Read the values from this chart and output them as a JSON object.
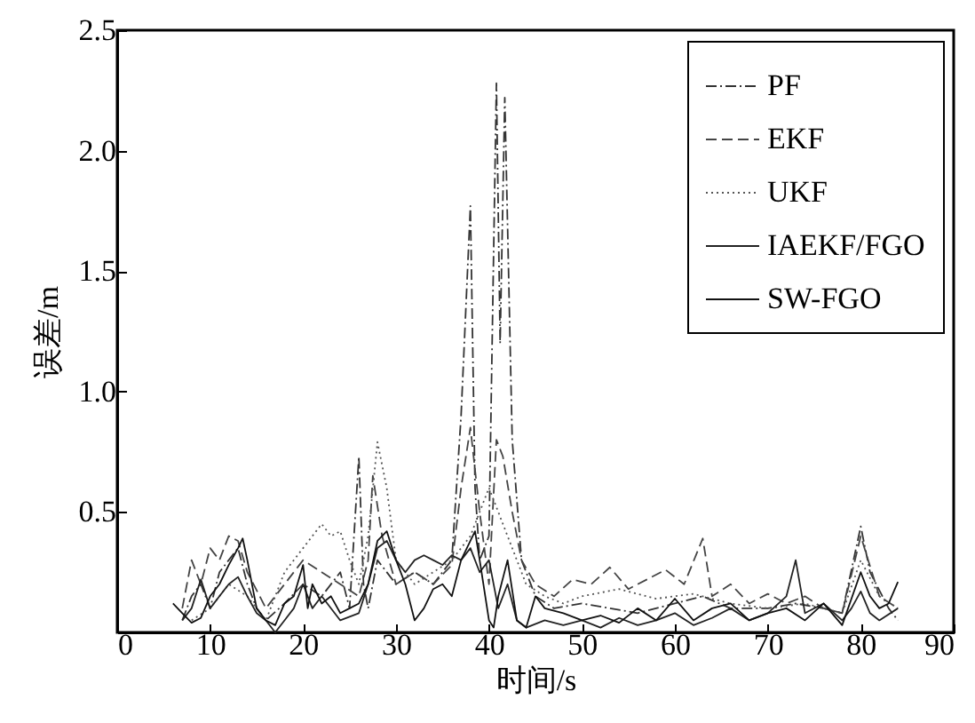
{
  "chart_data": {
    "type": "line",
    "xlabel": "时间/s",
    "ylabel": "误差/m",
    "xlim": [
      0,
      90
    ],
    "ylim": [
      0,
      2.5
    ],
    "xticks": [
      0,
      10,
      20,
      30,
      40,
      50,
      60,
      70,
      80,
      90
    ],
    "yticks": [
      {
        "value": 0,
        "label": null
      },
      0.5,
      {
        "value": 1,
        "label": "1.0"
      },
      1.5,
      {
        "value": 2,
        "label": "2.0"
      },
      2.5
    ],
    "legend": "top right",
    "series": [
      {
        "name": "PF",
        "color": "#333333",
        "line_style": "dashdot",
        "x": [
          7,
          8,
          9,
          10,
          11,
          12,
          13,
          14,
          15,
          16,
          18,
          20,
          22,
          24,
          25,
          26,
          26.5,
          27,
          28,
          30,
          32,
          34,
          36,
          37,
          38,
          38.5,
          39,
          40,
          40.8,
          41.2,
          41.7,
          42.5,
          43.5,
          45,
          47,
          50,
          53,
          56,
          60,
          63,
          66,
          70,
          73,
          76,
          78,
          80,
          81,
          83,
          84
        ],
        "values": [
          0.05,
          0.15,
          0.2,
          0.1,
          0.25,
          0.3,
          0.35,
          0.2,
          0.1,
          0.05,
          0.12,
          0.2,
          0.15,
          0.25,
          0.1,
          0.73,
          0.2,
          0.1,
          0.3,
          0.2,
          0.25,
          0.2,
          0.3,
          0.9,
          1.77,
          0.6,
          0.3,
          0.4,
          2.28,
          1.2,
          2.22,
          0.8,
          0.3,
          0.15,
          0.1,
          0.12,
          0.1,
          0.08,
          0.12,
          0.15,
          0.1,
          0.1,
          0.12,
          0.1,
          0.08,
          0.44,
          0.25,
          0.1,
          0.05
        ]
      },
      {
        "name": "EKF",
        "color": "#444444",
        "line_style": "dashed",
        "x": [
          7,
          8,
          9,
          10,
          11,
          12,
          13,
          14,
          16,
          18,
          20,
          22,
          24,
          26,
          27,
          27.5,
          28.5,
          30,
          32,
          34,
          36,
          37,
          38,
          39,
          40,
          40.8,
          41.5,
          42.5,
          43.5,
          45,
          47,
          49,
          51,
          53,
          55,
          57,
          59,
          61,
          63,
          64,
          66,
          68,
          70,
          72,
          74,
          76,
          78,
          80,
          82,
          84
        ],
        "values": [
          0.1,
          0.3,
          0.2,
          0.35,
          0.3,
          0.4,
          0.38,
          0.25,
          0.1,
          0.2,
          0.3,
          0.25,
          0.2,
          0.15,
          0.3,
          0.65,
          0.4,
          0.2,
          0.25,
          0.2,
          0.28,
          0.6,
          0.85,
          0.5,
          0.2,
          0.8,
          0.73,
          0.5,
          0.3,
          0.2,
          0.15,
          0.22,
          0.2,
          0.27,
          0.18,
          0.22,
          0.26,
          0.2,
          0.39,
          0.15,
          0.2,
          0.12,
          0.16,
          0.12,
          0.15,
          0.1,
          0.08,
          0.4,
          0.15,
          0.1
        ]
      },
      {
        "name": "UKF",
        "color": "#555555",
        "line_style": "dotted",
        "x": [
          8,
          10,
          12,
          14,
          16,
          18,
          20,
          22,
          23,
          24,
          25,
          26,
          27,
          28,
          29,
          30,
          32,
          34,
          36,
          38,
          40,
          42,
          44,
          46,
          48,
          50,
          54,
          58,
          62,
          66,
          70,
          74,
          78,
          80,
          82,
          84
        ],
        "values": [
          0.05,
          0.1,
          0.2,
          0.15,
          0.05,
          0.25,
          0.35,
          0.45,
          0.4,
          0.42,
          0.3,
          0.2,
          0.4,
          0.79,
          0.6,
          0.3,
          0.2,
          0.25,
          0.3,
          0.4,
          0.6,
          0.4,
          0.2,
          0.15,
          0.12,
          0.15,
          0.18,
          0.14,
          0.16,
          0.12,
          0.1,
          0.12,
          0.08,
          0.3,
          0.15,
          0.1
        ]
      },
      {
        "name": "IAEKF/FGO",
        "color": "#222222",
        "line_style": "solid",
        "x": [
          7,
          8,
          9,
          10,
          11,
          12,
          13,
          14,
          15,
          16,
          17,
          18,
          19,
          20,
          21,
          22,
          24,
          26,
          27,
          28,
          29,
          30,
          31,
          32,
          33,
          34,
          35,
          36,
          37,
          38,
          39,
          40,
          41,
          42,
          43,
          44,
          46,
          48,
          50,
          52,
          54,
          56,
          58,
          60,
          62,
          64,
          66,
          68,
          70,
          72,
          73,
          74,
          76,
          78,
          79,
          80,
          81,
          82,
          84
        ],
        "values": [
          0.05,
          0.1,
          0.22,
          0.1,
          0.15,
          0.2,
          0.23,
          0.15,
          0.08,
          0.05,
          0,
          0.05,
          0.1,
          0.2,
          0.1,
          0.15,
          0.05,
          0.08,
          0.2,
          0.35,
          0.38,
          0.3,
          0.25,
          0.3,
          0.32,
          0.3,
          0.28,
          0.32,
          0.3,
          0.35,
          0.25,
          0.3,
          0.1,
          0.2,
          0.05,
          0.02,
          0.05,
          0.03,
          0.05,
          0.02,
          0.06,
          0.03,
          0.05,
          0.08,
          0.03,
          0.06,
          0.1,
          0.05,
          0.08,
          0.15,
          0.3,
          0.08,
          0.12,
          0.05,
          0.1,
          0.17,
          0.08,
          0.05,
          0.1
        ]
      },
      {
        "name": "SW-FGO",
        "color": "#111111",
        "line_style": "solid",
        "x": [
          6,
          7,
          8,
          9,
          10,
          11,
          12,
          13,
          13.5,
          14,
          15,
          16,
          17,
          18,
          19,
          20,
          20.5,
          21,
          22,
          23,
          24,
          25,
          26,
          27,
          28,
          29,
          30,
          31,
          32,
          33,
          34,
          35,
          36,
          37,
          38,
          38.5,
          39,
          40,
          40.5,
          41,
          42,
          43,
          44,
          45,
          46,
          48,
          50,
          52,
          54,
          56,
          58,
          60,
          62,
          64,
          66,
          68,
          70,
          72,
          74,
          76,
          78,
          80,
          81,
          82,
          83,
          84
        ],
        "values": [
          0.12,
          0.08,
          0.04,
          0.06,
          0.15,
          0.2,
          0.28,
          0.35,
          0.39,
          0.3,
          0.1,
          0.05,
          0.03,
          0.12,
          0.15,
          0.28,
          0.1,
          0.2,
          0.12,
          0.15,
          0.08,
          0.1,
          0.12,
          0.2,
          0.38,
          0.42,
          0.3,
          0.2,
          0.05,
          0.1,
          0.18,
          0.2,
          0.15,
          0.3,
          0.38,
          0.42,
          0.3,
          0.05,
          0.02,
          0.15,
          0.3,
          0.05,
          0.02,
          0.15,
          0.1,
          0.08,
          0.05,
          0.07,
          0.04,
          0.1,
          0.05,
          0.14,
          0.05,
          0.1,
          0.12,
          0.05,
          0.08,
          0.1,
          0.05,
          0.12,
          0.03,
          0.25,
          0.15,
          0.1,
          0.12,
          0.21
        ]
      }
    ]
  }
}
